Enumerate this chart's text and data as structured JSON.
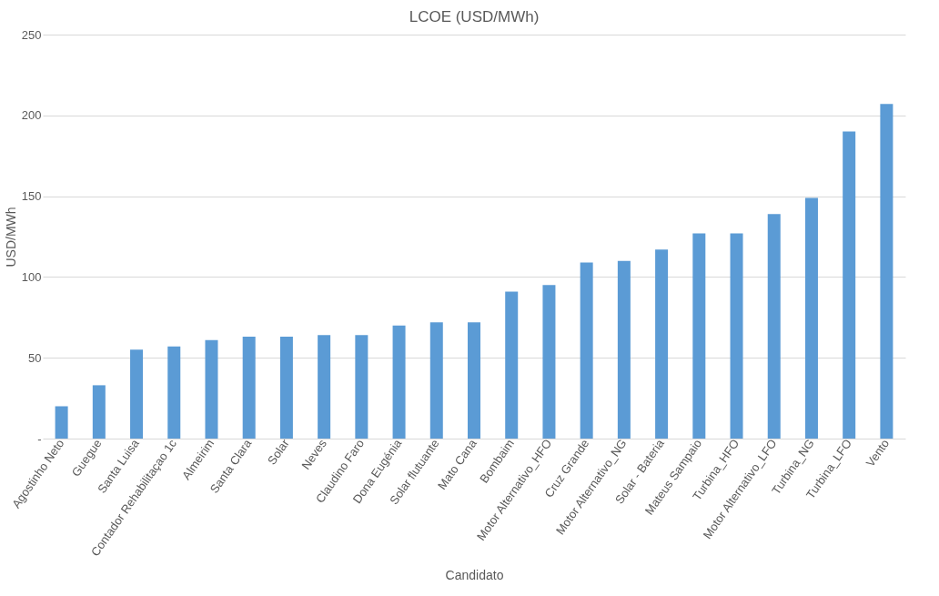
{
  "chart_data": {
    "type": "bar",
    "title": "LCOE (USD/MWh)",
    "xlabel": "Candidato",
    "ylabel": "USD/MWh",
    "categories": [
      "Agostinho Neto",
      "Guegue",
      "Santa Luisa",
      "Contador Rehabilitaçao 1c",
      "Almeirim",
      "Santa Clara",
      "Solar",
      "Neves",
      "Claudino Faro",
      "Dona Eugénia",
      "Solar flutuante",
      "Mato Cana",
      "Bombaim",
      "Motor Alternativo_HFO",
      "Cruz Grande",
      "Motor Alternativo_NG",
      "Solar - Bateria",
      "Mateus Sampaio",
      "Turbina_HFO",
      "Motor Alternativo_LFO",
      "Turbina_NG",
      "Turbina_LFO",
      "Vento"
    ],
    "values": [
      20,
      33,
      55,
      57,
      61,
      63,
      63,
      64,
      64,
      70,
      72,
      72,
      91,
      95,
      109,
      110,
      117,
      127,
      127,
      139,
      149,
      190,
      207
    ],
    "color": "#5b9bd5",
    "ylim": [
      0,
      250
    ],
    "yticks": [
      {
        "value": 0,
        "label": "-"
      },
      50,
      100,
      150,
      200,
      250
    ],
    "grid": "y"
  }
}
